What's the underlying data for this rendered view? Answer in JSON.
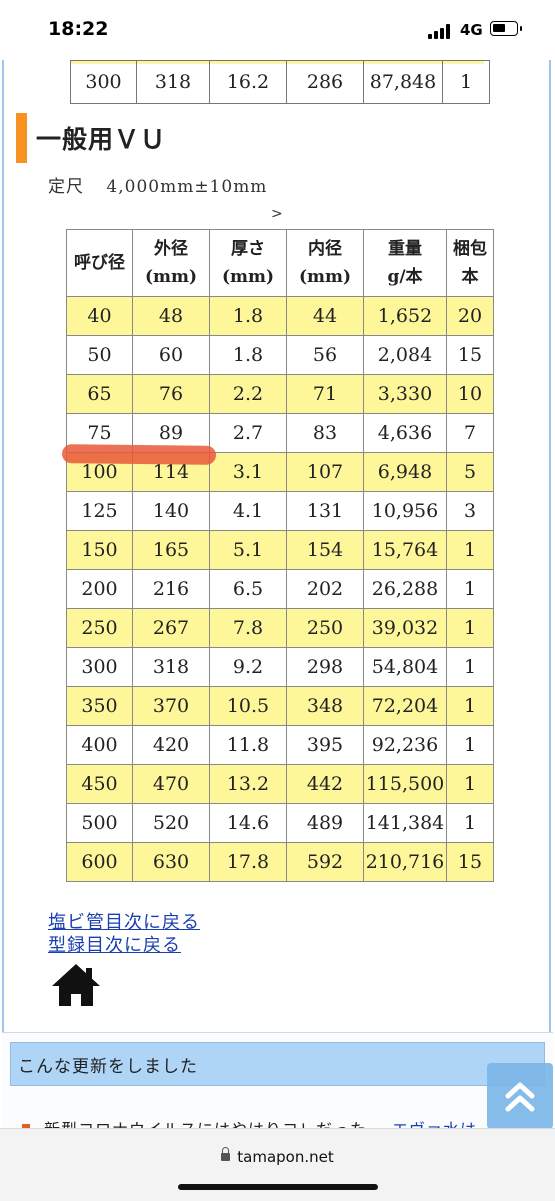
{
  "status_bar": {
    "time": "18:22",
    "network": "4G"
  },
  "top_table_row": [
    "300",
    "318",
    "16.2",
    "286",
    "87,848",
    "1"
  ],
  "section": {
    "title": "一般用ＶＵ",
    "length_label": "定尺",
    "length_value": "4,000mm±10mm",
    "scroll_hint": ">"
  },
  "spec_table": {
    "headers": [
      {
        "line1": "呼び径",
        "line2": ""
      },
      {
        "line1": "外径",
        "line2": "(mm)"
      },
      {
        "line1": "厚さ",
        "line2": "(mm)"
      },
      {
        "line1": "内径",
        "line2": "(mm)"
      },
      {
        "line1": "重量",
        "line2": "g/本"
      },
      {
        "line1": "梱包",
        "line2": "本"
      }
    ],
    "rows": [
      [
        "40",
        "48",
        "1.8",
        "44",
        "1,652",
        "20"
      ],
      [
        "50",
        "60",
        "1.8",
        "56",
        "2,084",
        "15"
      ],
      [
        "65",
        "76",
        "2.2",
        "71",
        "3,330",
        "10"
      ],
      [
        "75",
        "89",
        "2.7",
        "83",
        "4,636",
        "7"
      ],
      [
        "100",
        "114",
        "3.1",
        "107",
        "6,948",
        "5"
      ],
      [
        "125",
        "140",
        "4.1",
        "131",
        "10,956",
        "3"
      ],
      [
        "150",
        "165",
        "5.1",
        "154",
        "15,764",
        "1"
      ],
      [
        "200",
        "216",
        "6.5",
        "202",
        "26,288",
        "1"
      ],
      [
        "250",
        "267",
        "7.8",
        "250",
        "39,032",
        "1"
      ],
      [
        "300",
        "318",
        "9.2",
        "298",
        "54,804",
        "1"
      ],
      [
        "350",
        "370",
        "10.5",
        "348",
        "72,204",
        "1"
      ],
      [
        "400",
        "420",
        "11.8",
        "395",
        "92,236",
        "1"
      ],
      [
        "450",
        "470",
        "13.2",
        "442",
        "115,500",
        "1"
      ],
      [
        "500",
        "520",
        "14.6",
        "489",
        "141,384",
        "1"
      ],
      [
        "600",
        "630",
        "17.8",
        "592",
        "210,716",
        "15"
      ]
    ]
  },
  "links": {
    "back_to_pvc_index": "塩ビ管目次に戻る",
    "back_to_catalog_index": "型録目次に戻る",
    "home_icon": "home-icon"
  },
  "updates": {
    "heading": "こんな更新をしました",
    "news_text": "新型コロナウイルスにはやはりコレだった",
    "news_link": "エヴァ水は"
  },
  "browser": {
    "url": "tamapon.net"
  },
  "colors": {
    "row_yellow": "#fdf79a",
    "section_accent": "#f7931e",
    "link_blue": "#1b3fb0",
    "update_bar": "#aed4f6",
    "highlight_mark": "#e8583a"
  }
}
